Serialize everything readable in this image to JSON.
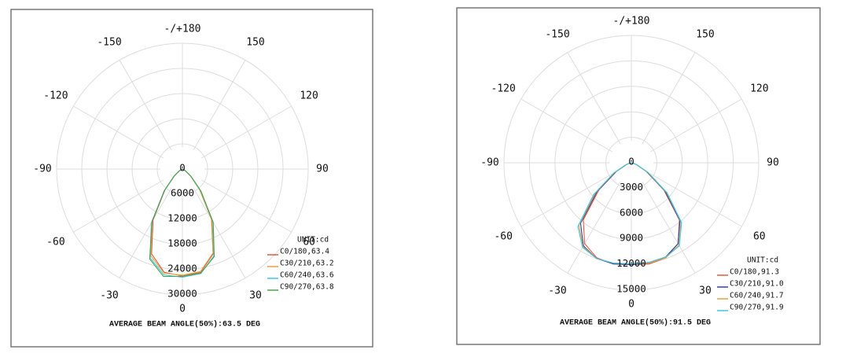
{
  "chart_data": [
    {
      "type": "polar",
      "angle_ticks": [
        {
          "value": 180,
          "label": "-/+180"
        },
        -150,
        150,
        -120,
        120,
        -90,
        90,
        -60,
        60,
        -30,
        30,
        0
      ],
      "rlim": [
        0,
        30000
      ],
      "rticks": [
        0,
        6000,
        12000,
        18000,
        24000,
        30000
      ],
      "theta": [
        -90,
        -80,
        -70,
        -60,
        -50,
        -40,
        -30,
        -20,
        -10,
        0,
        10,
        20,
        30,
        40,
        50,
        60,
        70,
        80,
        90
      ],
      "unit_label": "UNIT:cd",
      "series": [
        {
          "name": "C0/180,63.4",
          "color": "#e05a40",
          "values": [
            0,
            50,
            200,
            800,
            2500,
            6500,
            14000,
            21500,
            25000,
            25500,
            25000,
            21500,
            14000,
            6500,
            2500,
            800,
            200,
            50,
            0
          ]
        },
        {
          "name": "C30/210,63.2",
          "color": "#e8a040",
          "values": [
            0,
            50,
            250,
            900,
            2700,
            6800,
            14500,
            22000,
            25200,
            25300,
            24800,
            21300,
            13800,
            6300,
            2400,
            750,
            200,
            50,
            0
          ]
        },
        {
          "name": "C60/240,63.6",
          "color": "#3ac8e8",
          "values": [
            0,
            60,
            250,
            900,
            2600,
            6700,
            14800,
            22500,
            25600,
            25800,
            25300,
            22000,
            14500,
            6800,
            2600,
            800,
            200,
            60,
            0
          ]
        },
        {
          "name": "C90/270,63.8",
          "color": "#50a050",
          "values": [
            0,
            50,
            220,
            850,
            2500,
            6600,
            14600,
            22800,
            26000,
            25600,
            25200,
            22200,
            14700,
            6900,
            2700,
            850,
            220,
            50,
            0
          ]
        }
      ],
      "note": "AVERAGE BEAM ANGLE(50%):63.5 DEG"
    },
    {
      "type": "polar",
      "angle_ticks": [
        {
          "value": 180,
          "label": "-/+180"
        },
        -150,
        150,
        -120,
        120,
        -90,
        90,
        -60,
        60,
        -30,
        30,
        0
      ],
      "rlim": [
        0,
        15000
      ],
      "rticks": [
        0,
        3000,
        6000,
        9000,
        12000,
        15000
      ],
      "theta": [
        -90,
        -80,
        -70,
        -60,
        -50,
        -40,
        -30,
        -20,
        -10,
        0,
        10,
        20,
        30,
        40,
        50,
        60,
        70,
        80,
        90
      ],
      "unit_label": "UNIT:cd",
      "series": [
        {
          "name": "C0/180,91.3",
          "color": "#e05a40",
          "values": [
            0,
            150,
            600,
            2000,
            5000,
            8800,
            11000,
            11900,
            12100,
            12000,
            12100,
            11900,
            11000,
            8800,
            5000,
            2000,
            600,
            150,
            0
          ]
        },
        {
          "name": "C30/210,91.0",
          "color": "#3040a0",
          "values": [
            0,
            170,
            650,
            2100,
            5300,
            9300,
            11300,
            12000,
            12100,
            12000,
            12000,
            11800,
            11000,
            8900,
            5200,
            2100,
            650,
            170,
            0
          ]
        },
        {
          "name": "C60/240,91.7",
          "color": "#e8a040",
          "values": [
            0,
            180,
            700,
            2300,
            5600,
            9600,
            11400,
            12000,
            12000,
            11900,
            12000,
            11900,
            11200,
            9100,
            5400,
            2200,
            680,
            180,
            0
          ]
        },
        {
          "name": "C90/270,91.9",
          "color": "#3ac8e8",
          "values": [
            0,
            200,
            750,
            2400,
            5800,
            9800,
            11500,
            12000,
            12000,
            11900,
            11900,
            11800,
            11300,
            9200,
            5500,
            2300,
            700,
            200,
            0
          ]
        }
      ],
      "note": "AVERAGE BEAM ANGLE(50%):91.5 DEG"
    }
  ]
}
